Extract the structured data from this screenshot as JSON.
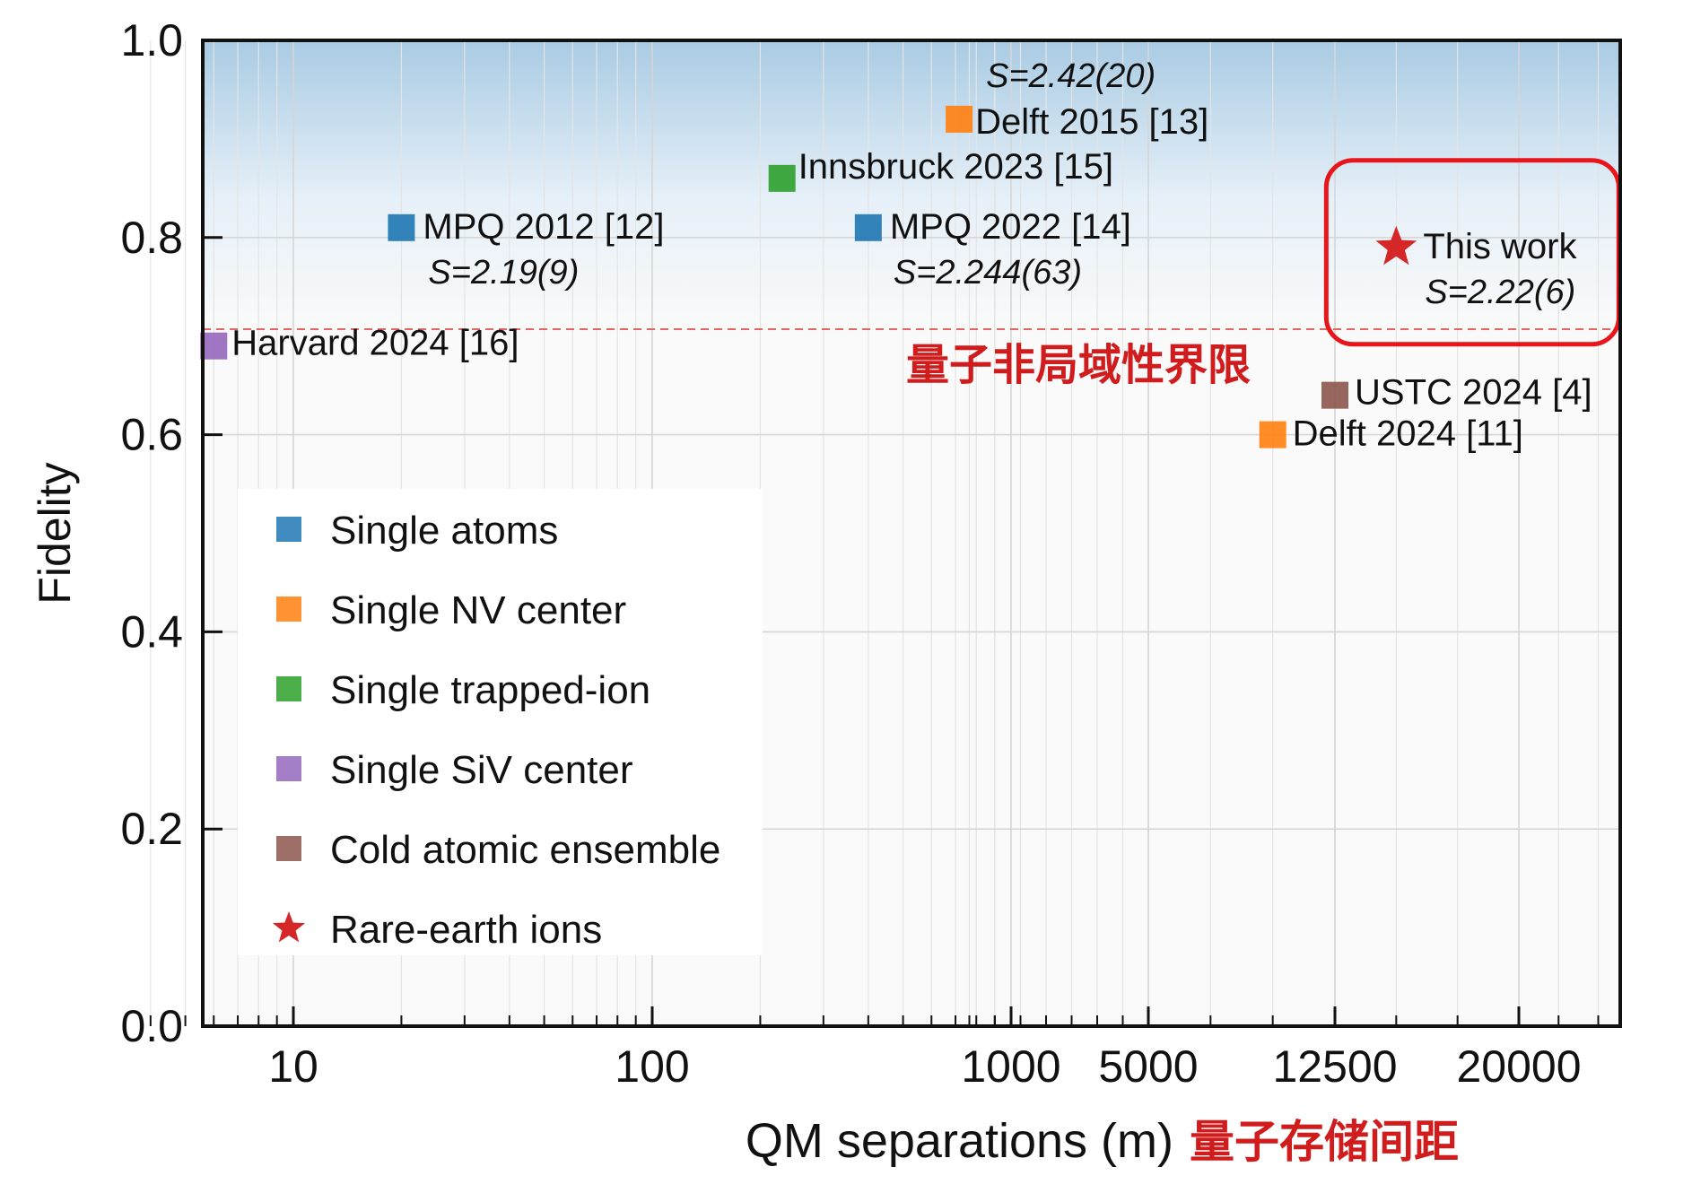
{
  "chart_data": {
    "type": "scatter",
    "title": "",
    "xlabel": "QM separations (m)",
    "xlabel_cn": "量子存储间距",
    "ylabel": "Fidelity",
    "x_scale": "log-scale segment up to 1000 m, then linear-spaced ticks 1000 / 5000 / 12500 / 20000",
    "x_ticks": [
      "10",
      "100",
      "1000",
      "5000",
      "12500",
      "20000"
    ],
    "y_ticks": [
      "0.0",
      "0.2",
      "0.4",
      "0.6",
      "0.8",
      "1.0"
    ],
    "ylim": [
      0,
      1
    ],
    "grid": true,
    "threshold": {
      "y": 0.707,
      "label": "量子非局域性界限",
      "color": "#e06666"
    },
    "legend_position": "left-middle",
    "categories": [
      {
        "name": "Single atoms",
        "color": "#1f77b4",
        "marker": "square"
      },
      {
        "name": "Single NV center",
        "color": "#ff7f0e",
        "marker": "square"
      },
      {
        "name": "Single trapped-ion",
        "color": "#2ca02c",
        "marker": "square"
      },
      {
        "name": "Single SiV center",
        "color": "#9467bd",
        "marker": "square"
      },
      {
        "name": "Cold atomic ensemble",
        "color": "#8c564b",
        "marker": "square"
      },
      {
        "name": "Rare-earth ions",
        "color": "#d62728",
        "marker": "star"
      }
    ],
    "points": [
      {
        "label": "Delft 2015 [13]",
        "s_value": "S=2.42(20)",
        "x": 1300,
        "y": 0.92,
        "category": "Single NV center"
      },
      {
        "label": "Innsbruck 2023 [15]",
        "s_value": "",
        "x": 230,
        "y": 0.86,
        "category": "Single trapped-ion"
      },
      {
        "label": "MPQ 2012 [12]",
        "s_value": "S=2.19(9)",
        "x": 20,
        "y": 0.81,
        "category": "Single atoms"
      },
      {
        "label": "MPQ 2022 [14]",
        "s_value": "S=2.244(63)",
        "x": 400,
        "y": 0.81,
        "category": "Single atoms"
      },
      {
        "label": "This work",
        "s_value": "S=2.22(6)",
        "x": 15000,
        "y": 0.79,
        "category": "Rare-earth ions"
      },
      {
        "label": "Harvard 2024 [16]",
        "s_value": "",
        "x": 6,
        "y": 0.69,
        "category": "Single SiV center"
      },
      {
        "label": "USTC 2024 [4]",
        "s_value": "",
        "x": 12500,
        "y": 0.64,
        "category": "Cold atomic ensemble"
      },
      {
        "label": "Delft 2024 [11]",
        "s_value": "",
        "x": 10000,
        "y": 0.6,
        "category": "Single NV center"
      }
    ]
  }
}
